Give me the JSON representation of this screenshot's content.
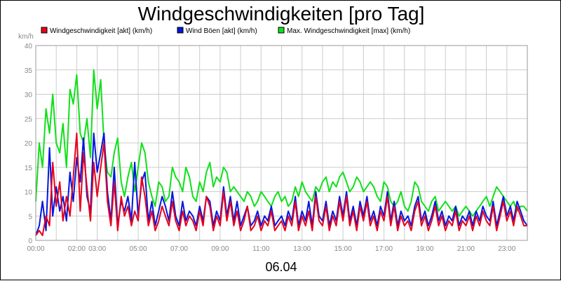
{
  "chart_data": {
    "type": "line",
    "title": "Windgeschwindigkeiten [pro Tag]",
    "unit_label": "km/h",
    "xlabel": "06.04",
    "ylabel": "",
    "ylim": [
      0,
      40
    ],
    "xlim": [
      0,
      24
    ],
    "y_ticks": [
      "0",
      "5",
      "10",
      "15",
      "20",
      "25",
      "30",
      "35",
      "40"
    ],
    "x_ticks": [
      "00:00",
      "02:00",
      "03:00",
      "05:00",
      "07:00",
      "09:00",
      "11:00",
      "13:00",
      "15:00",
      "17:00",
      "19:00",
      "21:00",
      "23:00"
    ],
    "grid": true,
    "legend_position": "top",
    "series": [
      {
        "name": "Windgeschwindigkeit [akt] (km/h)",
        "color": "#e8001c",
        "x": [
          0,
          0.17,
          0.33,
          0.5,
          0.67,
          0.83,
          1,
          1.17,
          1.33,
          1.5,
          1.67,
          1.83,
          2,
          2.17,
          2.33,
          2.5,
          2.67,
          2.83,
          3,
          3.17,
          3.33,
          3.5,
          3.67,
          3.83,
          4,
          4.17,
          4.33,
          4.5,
          4.67,
          4.83,
          5,
          5.17,
          5.33,
          5.5,
          5.67,
          5.83,
          6,
          6.17,
          6.33,
          6.5,
          6.67,
          6.83,
          7,
          7.17,
          7.33,
          7.5,
          7.67,
          7.83,
          8,
          8.17,
          8.33,
          8.5,
          8.67,
          8.83,
          9,
          9.17,
          9.33,
          9.5,
          9.67,
          9.83,
          10,
          10.17,
          10.33,
          10.5,
          10.67,
          10.83,
          11,
          11.17,
          11.33,
          11.5,
          11.67,
          11.83,
          12,
          12.17,
          12.33,
          12.5,
          12.67,
          12.83,
          13,
          13.17,
          13.33,
          13.5,
          13.67,
          13.83,
          14,
          14.17,
          14.33,
          14.5,
          14.67,
          14.83,
          15,
          15.17,
          15.33,
          15.5,
          15.67,
          15.83,
          16,
          16.17,
          16.33,
          16.5,
          16.67,
          16.83,
          17,
          17.17,
          17.33,
          17.5,
          17.67,
          17.83,
          18,
          18.17,
          18.33,
          18.5,
          18.67,
          18.83,
          19,
          19.17,
          19.33,
          19.5,
          19.67,
          19.83,
          20,
          20.17,
          20.33,
          20.5,
          20.67,
          20.83,
          21,
          21.17,
          21.33,
          21.5,
          21.67,
          21.83,
          22,
          22.17,
          22.33,
          22.5,
          22.67,
          22.83,
          23,
          23.17,
          23.33,
          23.5,
          23.67,
          23.83,
          24
        ],
        "y": [
          1,
          2,
          1,
          5,
          3,
          16,
          7,
          12,
          4,
          9,
          5,
          13,
          22,
          6,
          18,
          11,
          4,
          16,
          9,
          15,
          20,
          8,
          3,
          12,
          2,
          9,
          5,
          7,
          3,
          6,
          4,
          13,
          9,
          3,
          6,
          2,
          4,
          7,
          5,
          3,
          8,
          4,
          2,
          6,
          3,
          5,
          4,
          2,
          6,
          3,
          9,
          7,
          2,
          5,
          3,
          10,
          4,
          8,
          3,
          6,
          2,
          4,
          7,
          2,
          3,
          5,
          2,
          4,
          3,
          6,
          2,
          3,
          4,
          2,
          5,
          3,
          8,
          2,
          5,
          3,
          6,
          2,
          9,
          4,
          3,
          7,
          2,
          5,
          3,
          8,
          4,
          9,
          3,
          6,
          2,
          7,
          4,
          8,
          3,
          5,
          2,
          6,
          4,
          9,
          3,
          7,
          2,
          5,
          3,
          4,
          2,
          6,
          8,
          3,
          5,
          2,
          4,
          7,
          3,
          5,
          2,
          4,
          3,
          6,
          2,
          4,
          3,
          5,
          2,
          5,
          3,
          6,
          4,
          3,
          7,
          2,
          5,
          8,
          4,
          6,
          3,
          7,
          5,
          3,
          3
        ],
        "max": null
      },
      {
        "name": "Wind Böen [akt] (km/h)",
        "color": "#0016e0",
        "x": [
          0,
          0.17,
          0.33,
          0.5,
          0.67,
          0.83,
          1,
          1.17,
          1.33,
          1.5,
          1.67,
          1.83,
          2,
          2.17,
          2.33,
          2.5,
          2.67,
          2.83,
          3,
          3.17,
          3.33,
          3.5,
          3.67,
          3.83,
          4,
          4.17,
          4.33,
          4.5,
          4.67,
          4.83,
          5,
          5.17,
          5.33,
          5.5,
          5.67,
          5.83,
          6,
          6.17,
          6.33,
          6.5,
          6.67,
          6.83,
          7,
          7.17,
          7.33,
          7.5,
          7.67,
          7.83,
          8,
          8.17,
          8.33,
          8.5,
          8.67,
          8.83,
          9,
          9.17,
          9.33,
          9.5,
          9.67,
          9.83,
          10,
          10.17,
          10.33,
          10.5,
          10.67,
          10.83,
          11,
          11.17,
          11.33,
          11.5,
          11.67,
          11.83,
          12,
          12.17,
          12.33,
          12.5,
          12.67,
          12.83,
          13,
          13.17,
          13.33,
          13.5,
          13.67,
          13.83,
          14,
          14.17,
          14.33,
          14.5,
          14.67,
          14.83,
          15,
          15.17,
          15.33,
          15.5,
          15.67,
          15.83,
          16,
          16.17,
          16.33,
          16.5,
          16.67,
          16.83,
          17,
          17.17,
          17.33,
          17.5,
          17.67,
          17.83,
          18,
          18.17,
          18.33,
          18.5,
          18.67,
          18.83,
          19,
          19.17,
          19.33,
          19.5,
          19.67,
          19.83,
          20,
          20.17,
          20.33,
          20.5,
          20.67,
          20.83,
          21,
          21.17,
          21.33,
          21.5,
          21.67,
          21.83,
          22,
          22.17,
          22.33,
          22.5,
          22.67,
          22.83,
          23,
          23.17,
          23.33,
          23.5,
          23.67,
          23.83,
          24
        ],
        "y": [
          1,
          3,
          8,
          2,
          19,
          5,
          11,
          6,
          9,
          4,
          14,
          8,
          17,
          12,
          21,
          9,
          6,
          22,
          14,
          18,
          22,
          10,
          4,
          15,
          3,
          8,
          6,
          9,
          4,
          16,
          5,
          12,
          14,
          4,
          8,
          3,
          6,
          9,
          7,
          4,
          10,
          5,
          3,
          8,
          4,
          6,
          5,
          3,
          7,
          4,
          9,
          8,
          3,
          6,
          4,
          11,
          5,
          9,
          4,
          8,
          3,
          5,
          7,
          3,
          4,
          6,
          3,
          5,
          4,
          7,
          3,
          4,
          5,
          3,
          6,
          4,
          9,
          3,
          6,
          4,
          8,
          3,
          10,
          5,
          4,
          8,
          3,
          6,
          4,
          9,
          5,
          10,
          4,
          7,
          3,
          8,
          5,
          9,
          4,
          6,
          3,
          7,
          5,
          10,
          4,
          8,
          3,
          6,
          4,
          5,
          3,
          7,
          9,
          4,
          6,
          3,
          5,
          8,
          4,
          6,
          3,
          5,
          4,
          7,
          3,
          5,
          4,
          6,
          3,
          6,
          4,
          7,
          5,
          4,
          8,
          3,
          6,
          9,
          5,
          7,
          4,
          8,
          6,
          4,
          3
        ],
        "max": null
      },
      {
        "name": "Max. Windgeschwindigkeit [max] (km/h)",
        "color": "#10e01a",
        "x": [
          0,
          0.17,
          0.33,
          0.5,
          0.67,
          0.83,
          1,
          1.17,
          1.33,
          1.5,
          1.67,
          1.83,
          2,
          2.17,
          2.33,
          2.5,
          2.67,
          2.83,
          3,
          3.17,
          3.33,
          3.5,
          3.67,
          3.83,
          4,
          4.17,
          4.33,
          4.5,
          4.67,
          4.83,
          5,
          5.17,
          5.33,
          5.5,
          5.67,
          5.83,
          6,
          6.17,
          6.33,
          6.5,
          6.67,
          6.83,
          7,
          7.17,
          7.33,
          7.5,
          7.67,
          7.83,
          8,
          8.17,
          8.33,
          8.5,
          8.67,
          8.83,
          9,
          9.17,
          9.33,
          9.5,
          9.67,
          9.83,
          10,
          10.17,
          10.33,
          10.5,
          10.67,
          10.83,
          11,
          11.17,
          11.33,
          11.5,
          11.67,
          11.83,
          12,
          12.17,
          12.33,
          12.5,
          12.67,
          12.83,
          13,
          13.17,
          13.33,
          13.5,
          13.67,
          13.83,
          14,
          14.17,
          14.33,
          14.5,
          14.67,
          14.83,
          15,
          15.17,
          15.33,
          15.5,
          15.67,
          15.83,
          16,
          16.17,
          16.33,
          16.5,
          16.67,
          16.83,
          17,
          17.17,
          17.33,
          17.5,
          17.67,
          17.83,
          18,
          18.17,
          18.33,
          18.5,
          18.67,
          18.83,
          19,
          19.17,
          19.33,
          19.5,
          19.67,
          19.83,
          20,
          20.17,
          20.33,
          20.5,
          20.67,
          20.83,
          21,
          21.17,
          21.33,
          21.5,
          21.67,
          21.83,
          22,
          22.17,
          22.33,
          22.5,
          22.67,
          22.83,
          23,
          23.17,
          23.33,
          23.5,
          23.67,
          23.83,
          24
        ],
        "y": [
          8,
          20,
          15,
          27,
          22,
          30,
          20,
          18,
          24,
          15,
          31,
          28,
          34,
          22,
          20,
          25,
          17,
          35,
          27,
          33,
          20,
          14,
          13,
          18,
          21,
          12,
          9,
          13,
          16,
          10,
          15,
          20,
          18,
          12,
          9,
          7,
          12,
          11,
          8,
          9,
          15,
          13,
          12,
          10,
          15,
          13,
          9,
          8,
          12,
          10,
          14,
          16,
          11,
          13,
          12,
          15,
          14,
          10,
          11,
          10,
          9,
          8,
          10,
          9,
          7,
          8,
          10,
          9,
          8,
          7,
          9,
          10,
          8,
          9,
          7,
          8,
          11,
          9,
          12,
          10,
          9,
          8,
          11,
          10,
          12,
          13,
          10,
          12,
          11,
          13,
          14,
          12,
          10,
          11,
          13,
          12,
          10,
          11,
          12,
          11,
          9,
          8,
          12,
          11,
          8,
          7,
          8,
          10,
          7,
          6,
          8,
          12,
          11,
          8,
          7,
          6,
          8,
          9,
          6,
          7,
          8,
          7,
          6,
          7,
          5,
          6,
          7,
          6,
          5,
          6,
          7,
          8,
          9,
          7,
          9,
          11,
          10,
          9,
          8,
          7,
          8,
          6,
          7,
          7,
          6
        ],
        "max": null
      }
    ]
  }
}
